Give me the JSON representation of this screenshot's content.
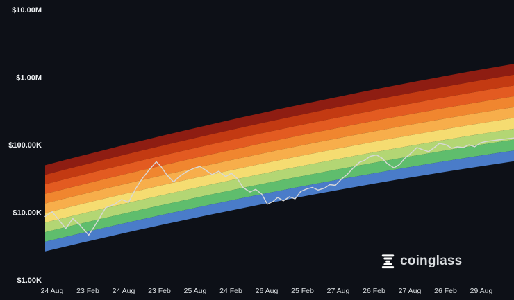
{
  "branding": {
    "name": "coinglass"
  },
  "colors": {
    "background": "#0d1017",
    "axis_text": "#eceff1"
  },
  "chart_data": {
    "type": "line",
    "scale": "log",
    "grid": "off",
    "legend": "none",
    "y_ticks": [
      {
        "label": "$10.00M",
        "value": 10000000
      },
      {
        "label": "$1.00M",
        "value": 1000000
      },
      {
        "label": "$100.00K",
        "value": 100000
      },
      {
        "label": "$10.00K",
        "value": 10000
      },
      {
        "label": "$1.00K",
        "value": 1000
      }
    ],
    "x_ticks": [
      "24 Aug",
      "23 Feb",
      "24 Aug",
      "23 Feb",
      "25 Aug",
      "24 Feb",
      "26 Aug",
      "25 Feb",
      "27 Aug",
      "26 Feb",
      "27 Aug",
      "26 Feb",
      "29 Aug"
    ],
    "rainbow_bands": {
      "colors": [
        "#8e1d12",
        "#c33a12",
        "#e35b21",
        "#f0862f",
        "#f7ae4b",
        "#f5dc71",
        "#b3d674",
        "#5fbd6d",
        "#4a7cc9"
      ],
      "left_top_price": 50000,
      "left_bottom_price": 2650,
      "right_top_price": 1580000,
      "right_bottom_price": 57000,
      "curve_bend_log10": 0.08
    },
    "price_line": {
      "color": "#d8d8d8",
      "points": [
        [
          0.0,
          8700
        ],
        [
          0.015,
          10200
        ],
        [
          0.03,
          7600
        ],
        [
          0.044,
          5750
        ],
        [
          0.059,
          8100
        ],
        [
          0.074,
          6500
        ],
        [
          0.093,
          4600
        ],
        [
          0.111,
          7200
        ],
        [
          0.129,
          11700
        ],
        [
          0.148,
          13200
        ],
        [
          0.163,
          15500
        ],
        [
          0.178,
          14100
        ],
        [
          0.193,
          22400
        ],
        [
          0.207,
          31600
        ],
        [
          0.222,
          42700
        ],
        [
          0.237,
          56200
        ],
        [
          0.247,
          47900
        ],
        [
          0.259,
          36300
        ],
        [
          0.274,
          28200
        ],
        [
          0.286,
          33900
        ],
        [
          0.301,
          39800
        ],
        [
          0.316,
          44700
        ],
        [
          0.33,
          47900
        ],
        [
          0.341,
          42700
        ],
        [
          0.356,
          36300
        ],
        [
          0.37,
          40700
        ],
        [
          0.385,
          33900
        ],
        [
          0.397,
          38000
        ],
        [
          0.41,
          31600
        ],
        [
          0.422,
          23400
        ],
        [
          0.437,
          20000
        ],
        [
          0.449,
          21900
        ],
        [
          0.462,
          18600
        ],
        [
          0.474,
          13200
        ],
        [
          0.486,
          14500
        ],
        [
          0.496,
          16600
        ],
        [
          0.508,
          14800
        ],
        [
          0.521,
          17000
        ],
        [
          0.533,
          15800
        ],
        [
          0.545,
          20400
        ],
        [
          0.559,
          22400
        ],
        [
          0.57,
          23400
        ],
        [
          0.582,
          21400
        ],
        [
          0.596,
          22900
        ],
        [
          0.607,
          25700
        ],
        [
          0.619,
          25100
        ],
        [
          0.633,
          31600
        ],
        [
          0.644,
          36300
        ],
        [
          0.656,
          44700
        ],
        [
          0.67,
          55000
        ],
        [
          0.681,
          58900
        ],
        [
          0.693,
          67600
        ],
        [
          0.707,
          70800
        ],
        [
          0.719,
          63100
        ],
        [
          0.73,
          52500
        ],
        [
          0.744,
          45700
        ],
        [
          0.756,
          51300
        ],
        [
          0.767,
          63100
        ],
        [
          0.781,
          75900
        ],
        [
          0.793,
          91200
        ],
        [
          0.804,
          85100
        ],
        [
          0.818,
          79400
        ],
        [
          0.83,
          91200
        ],
        [
          0.841,
          105000
        ],
        [
          0.855,
          100000
        ],
        [
          0.867,
          89100
        ],
        [
          0.879,
          93300
        ],
        [
          0.892,
          91200
        ],
        [
          0.904,
          100000
        ],
        [
          0.916,
          93300
        ],
        [
          0.929,
          107000
        ],
        [
          0.941,
          112000
        ],
        [
          0.953,
          115000
        ],
        [
          0.966,
          118000
        ],
        [
          0.978,
          121000
        ],
        [
          0.99,
          124000
        ],
        [
          1.0,
          126000
        ]
      ]
    }
  }
}
